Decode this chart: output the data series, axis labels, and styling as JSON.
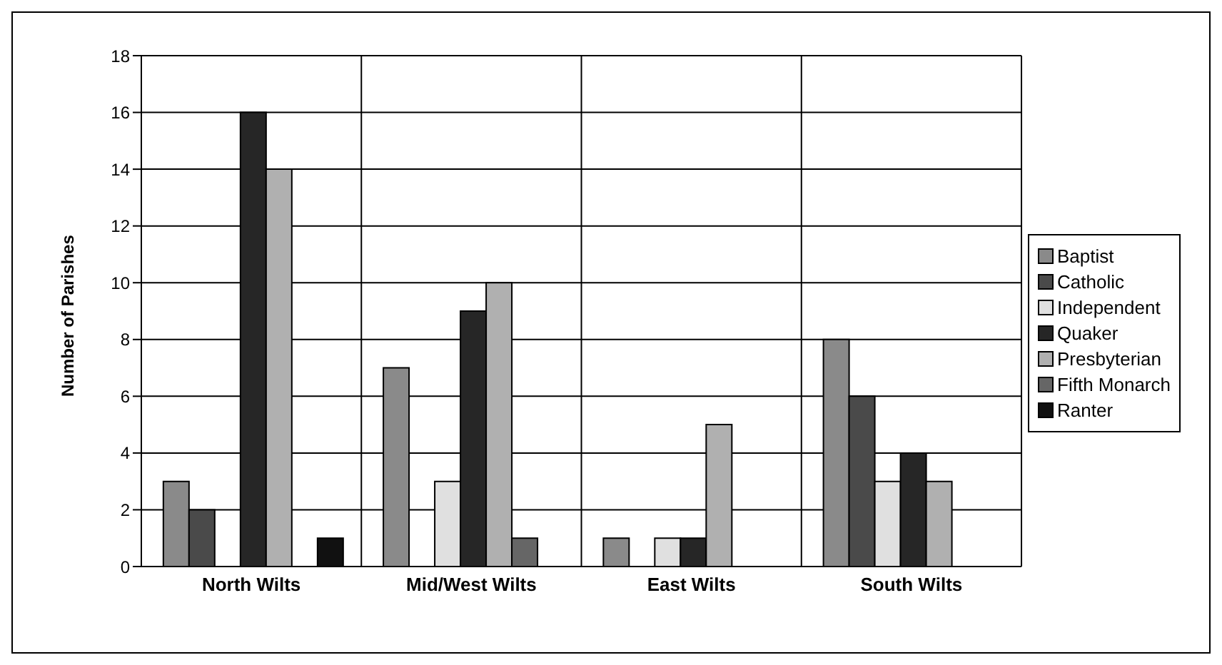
{
  "chart_data": {
    "type": "bar",
    "ylabel": "Number of Parishes",
    "categories": [
      "North Wilts",
      "Mid/West Wilts",
      "East Wilts",
      "South Wilts"
    ],
    "series": [
      {
        "name": "Baptist",
        "color": "#8a8a8a",
        "values": [
          3,
          7,
          1,
          8
        ]
      },
      {
        "name": "Catholic",
        "color": "#4a4a4a",
        "values": [
          2,
          0,
          0,
          6
        ]
      },
      {
        "name": "Independent",
        "color": "#e0e0e0",
        "values": [
          0,
          3,
          1,
          3
        ]
      },
      {
        "name": "Quaker",
        "color": "#262626",
        "values": [
          16,
          9,
          1,
          4
        ]
      },
      {
        "name": "Presbyterian",
        "color": "#b0b0b0",
        "values": [
          14,
          10,
          5,
          3
        ]
      },
      {
        "name": "Fifth Monarch",
        "color": "#666666",
        "values": [
          0,
          1,
          0,
          0
        ]
      },
      {
        "name": "Ranter",
        "color": "#111111",
        "values": [
          1,
          0,
          0,
          0
        ]
      }
    ],
    "ylim": [
      0,
      18
    ],
    "yticks": [
      0,
      2,
      4,
      6,
      8,
      10,
      12,
      14,
      16,
      18
    ],
    "grid": true,
    "legend": "right"
  }
}
